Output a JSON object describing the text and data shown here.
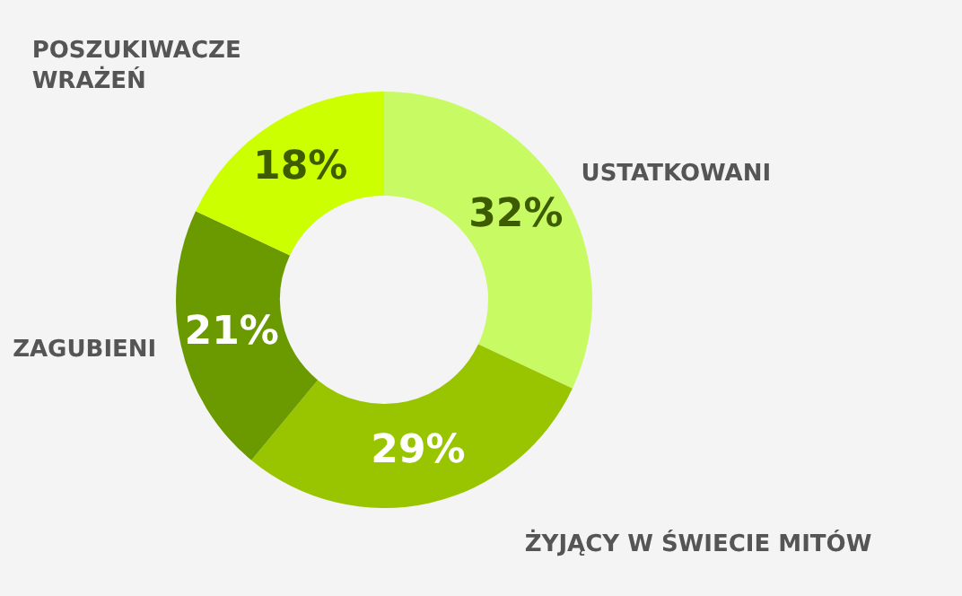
{
  "chart_data": {
    "type": "donut",
    "categories": [
      "USTATKOWANI",
      "ŻYJĄCY W ŚWIECIE MITÓW",
      "ZAGUBIENI",
      "POSZUKIWACZE WRAŻEŃ"
    ],
    "values": [
      32,
      29,
      21,
      18
    ],
    "colors": [
      "#c8fa64",
      "#99c400",
      "#6a9a00",
      "#ccff00"
    ],
    "value_labels": [
      "32%",
      "29%",
      "21%",
      "18%"
    ],
    "legend": false
  }
}
